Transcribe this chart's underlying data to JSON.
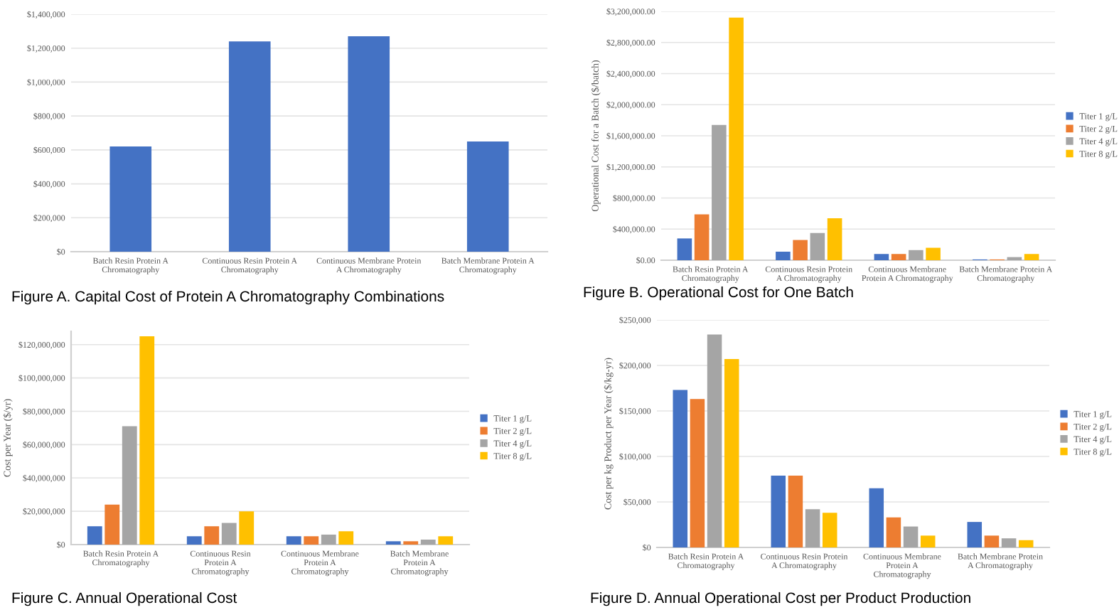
{
  "chart_data": [
    {
      "type": "bar",
      "title": "Figure A. Capital Cost of Protein A Chromatography Combinations",
      "categories": [
        "Batch Resin Protein A\nChromatography",
        "Continuous Resin Protein A\nChromatography",
        "Continuous Membrane Protein\nA Chromatography",
        "Batch Membrane Protein A\nChromatography"
      ],
      "values": [
        620000,
        1240000,
        1270000,
        650000
      ],
      "color": "#4472c4",
      "ylim": [
        0,
        1400000
      ],
      "yticks": [
        {
          "value": 0,
          "label": "$0"
        },
        {
          "value": 200000,
          "label": "$200,000"
        },
        {
          "value": 400000,
          "label": "$400,000"
        },
        {
          "value": 600000,
          "label": "$600,000"
        },
        {
          "value": 800000,
          "label": "$800,000"
        },
        {
          "value": 1000000,
          "label": "$1,000,000"
        },
        {
          "value": 1200000,
          "label": "$1,200,000"
        },
        {
          "value": 1400000,
          "label": "$1,400,000"
        }
      ],
      "grid": "y"
    },
    {
      "type": "bar",
      "title": "Figure B. Operational Cost for One Batch",
      "ylabel": "Operational Cost for a Batch ($/batch)",
      "categories": [
        "Batch Resin Protein A\nChromatography",
        "Continuous Resin Protein\nA Chromatography",
        "Continuous Membrane\nProtein A Chromatography",
        "Batch Membrane Protein A\nChromatography"
      ],
      "series": [
        {
          "name": "Titer 1 g/L",
          "color": "#4472c4",
          "values": [
            280000,
            110000,
            80000,
            10000
          ]
        },
        {
          "name": "Titer 2 g/L",
          "color": "#ed7d31",
          "values": [
            590000,
            260000,
            80000,
            10000
          ]
        },
        {
          "name": "Titer 4 g/L",
          "color": "#a5a5a5",
          "values": [
            1740000,
            350000,
            130000,
            40000
          ]
        },
        {
          "name": "Titer 8 g/L",
          "color": "#ffc000",
          "values": [
            3120000,
            540000,
            160000,
            80000
          ]
        }
      ],
      "ylim": [
        0,
        3200000
      ],
      "yticks": [
        {
          "value": 0,
          "label": "$0.00"
        },
        {
          "value": 400000,
          "label": "$400,000.00"
        },
        {
          "value": 800000,
          "label": "$800,000.00"
        },
        {
          "value": 1200000,
          "label": "$1,200,000.00"
        },
        {
          "value": 1600000,
          "label": "$1,600,000.00"
        },
        {
          "value": 2000000,
          "label": "$2,000,000.00"
        },
        {
          "value": 2400000,
          "label": "$2,400,000.00"
        },
        {
          "value": 2800000,
          "label": "$2,800,000.00"
        },
        {
          "value": 3200000,
          "label": "$3,200,000.00"
        }
      ],
      "grid": "y",
      "legend": "right"
    },
    {
      "type": "bar",
      "title": "Figure C. Annual Operational Cost",
      "ylabel": "Cost per Year ($/yr)",
      "categories": [
        "Batch Resin Protein A\nChromatography",
        "Continuous Resin\nProtein A\nChromatography",
        "Continuous Membrane\nProtein A\nChromatography",
        "Batch Membrane\nProtein A\nChromatography"
      ],
      "series": [
        {
          "name": "Titer 1 g/L",
          "color": "#4472c4",
          "values": [
            11000000,
            5000000,
            5000000,
            2000000
          ]
        },
        {
          "name": "Titer 2 g/L",
          "color": "#ed7d31",
          "values": [
            24000000,
            11000000,
            5000000,
            2000000
          ]
        },
        {
          "name": "Titer 4 g/L",
          "color": "#a5a5a5",
          "values": [
            71000000,
            13000000,
            6000000,
            3000000
          ]
        },
        {
          "name": "Titer 8 g/L",
          "color": "#ffc000",
          "values": [
            125000000,
            20000000,
            8000000,
            5000000
          ]
        }
      ],
      "ylim": [
        0,
        128000000
      ],
      "yticks": [
        {
          "value": 0,
          "label": "$0"
        },
        {
          "value": 20000000,
          "label": "$20,000,000"
        },
        {
          "value": 40000000,
          "label": "$40,000,000"
        },
        {
          "value": 60000000,
          "label": "$60,000,000"
        },
        {
          "value": 80000000,
          "label": "$80,000,000"
        },
        {
          "value": 100000000,
          "label": "$100,000,000"
        },
        {
          "value": 120000000,
          "label": "$120,000,000"
        }
      ],
      "grid": "y",
      "legend": "right"
    },
    {
      "type": "bar",
      "title": "Figure D. Annual Operational Cost per Product Production",
      "ylabel": "Cost per kg Product per Year ($/kg-yr)",
      "categories": [
        "Batch Resin Protein A\nChromatography",
        "Continuous Resin Protein\nA Chromatography",
        "Continuous Membrane\nProtein A\nChromatography",
        "Batch Membrane Protein\nA Chromatography"
      ],
      "series": [
        {
          "name": "Titer 1 g/L",
          "color": "#4472c4",
          "values": [
            173000,
            79000,
            65000,
            28000
          ]
        },
        {
          "name": "Titer 2 g/L",
          "color": "#ed7d31",
          "values": [
            163000,
            79000,
            33000,
            13000
          ]
        },
        {
          "name": "Titer 4 g/L",
          "color": "#a5a5a5",
          "values": [
            234000,
            42000,
            23000,
            10000
          ]
        },
        {
          "name": "Titer 8 g/L",
          "color": "#ffc000",
          "values": [
            207000,
            38000,
            13000,
            8000
          ]
        }
      ],
      "ylim": [
        0,
        250000
      ],
      "yticks": [
        {
          "value": 0,
          "label": "$0"
        },
        {
          "value": 50000,
          "label": "$50,000"
        },
        {
          "value": 100000,
          "label": "$100,000"
        },
        {
          "value": 150000,
          "label": "$150,000"
        },
        {
          "value": 200000,
          "label": "$200,000"
        },
        {
          "value": 250000,
          "label": "$250,000"
        }
      ],
      "grid": "y",
      "legend": "right"
    }
  ]
}
